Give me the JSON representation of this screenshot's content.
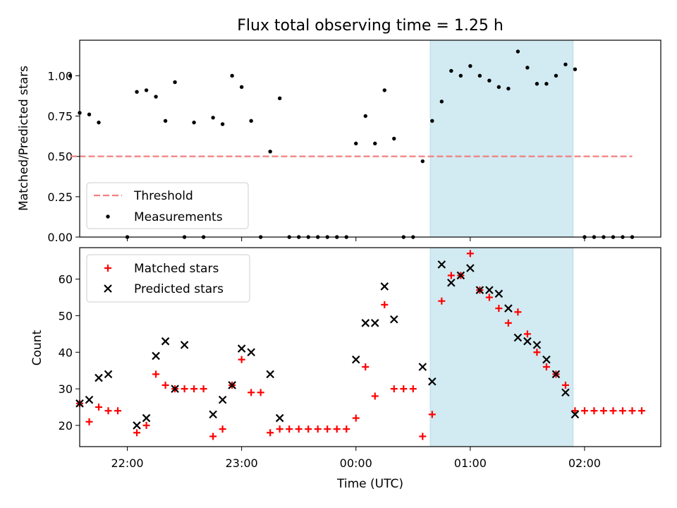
{
  "title": "Flux total observing time = 1.25 h",
  "chart_data": [
    {
      "type": "scatter",
      "panel": "top",
      "ylabel": "Matched/Predicted stars",
      "xlim": [
        "21:35",
        "02:40"
      ],
      "ylim": [
        0,
        1.22
      ],
      "yticks": [
        0.0,
        0.25,
        0.5,
        0.75,
        1.0
      ],
      "ytick_labels": [
        "0.00",
        "0.25",
        "0.50",
        "0.75",
        "1.00"
      ],
      "threshold": {
        "name": "Threshold",
        "value": 0.5,
        "x_range": [
          "21:30",
          "02:25"
        ],
        "color": "#f08080",
        "style": "dashed"
      },
      "highlight": {
        "from": "00:39",
        "to": "01:54",
        "color": "#add8e6"
      },
      "legend": {
        "position": "lower-left"
      },
      "series": [
        {
          "name": "Measurements",
          "color": "#000000",
          "points": [
            [
              "21:30",
              1.0
            ],
            [
              "21:35",
              0.77
            ],
            [
              "21:40",
              0.76
            ],
            [
              "21:45",
              0.71
            ],
            [
              "22:00",
              0.0
            ],
            [
              "22:05",
              0.9
            ],
            [
              "22:10",
              0.91
            ],
            [
              "22:15",
              0.87
            ],
            [
              "22:20",
              0.72
            ],
            [
              "22:25",
              0.96
            ],
            [
              "22:30",
              0.0
            ],
            [
              "22:35",
              0.71
            ],
            [
              "22:40",
              0.0
            ],
            [
              "22:45",
              0.74
            ],
            [
              "22:50",
              0.7
            ],
            [
              "22:55",
              1.0
            ],
            [
              "23:00",
              0.93
            ],
            [
              "23:05",
              0.72
            ],
            [
              "23:10",
              0.0
            ],
            [
              "23:15",
              0.53
            ],
            [
              "23:20",
              0.86
            ],
            [
              "23:25",
              0.0
            ],
            [
              "23:30",
              0.0
            ],
            [
              "23:35",
              0.0
            ],
            [
              "23:40",
              0.0
            ],
            [
              "23:45",
              0.0
            ],
            [
              "23:50",
              0.0
            ],
            [
              "23:55",
              0.0
            ],
            [
              "00:00",
              0.58
            ],
            [
              "00:05",
              0.75
            ],
            [
              "00:10",
              0.58
            ],
            [
              "00:15",
              0.91
            ],
            [
              "00:20",
              0.61
            ],
            [
              "00:25",
              0.0
            ],
            [
              "00:30",
              0.0
            ],
            [
              "00:35",
              0.47
            ],
            [
              "00:40",
              0.72
            ],
            [
              "00:45",
              0.84
            ],
            [
              "00:50",
              1.03
            ],
            [
              "00:55",
              1.0
            ],
            [
              "01:00",
              1.06
            ],
            [
              "01:05",
              1.0
            ],
            [
              "01:10",
              0.97
            ],
            [
              "01:15",
              0.93
            ],
            [
              "01:20",
              0.92
            ],
            [
              "01:25",
              1.15
            ],
            [
              "01:30",
              1.05
            ],
            [
              "01:35",
              0.95
            ],
            [
              "01:40",
              0.95
            ],
            [
              "01:45",
              1.0
            ],
            [
              "01:50",
              1.07
            ],
            [
              "01:55",
              1.04
            ],
            [
              "02:00",
              0.0
            ],
            [
              "02:05",
              0.0
            ],
            [
              "02:10",
              0.0
            ],
            [
              "02:15",
              0.0
            ],
            [
              "02:20",
              0.0
            ],
            [
              "02:25",
              0.0
            ]
          ]
        }
      ]
    },
    {
      "type": "scatter",
      "panel": "bottom",
      "xlabel": "Time (UTC)",
      "ylabel": "Count",
      "xlim": [
        "21:35",
        "02:40"
      ],
      "xticks": [
        "22:00",
        "23:00",
        "00:00",
        "01:00",
        "02:00"
      ],
      "ylim": [
        14.2,
        68.6
      ],
      "yticks": [
        20,
        30,
        40,
        50,
        60
      ],
      "highlight": {
        "from": "00:39",
        "to": "01:54",
        "color": "#add8e6"
      },
      "legend": {
        "position": "upper-left"
      },
      "series": [
        {
          "name": "Matched stars",
          "marker": "plus",
          "color": "#ff0000",
          "points": [
            [
              "21:35",
              26
            ],
            [
              "21:40",
              21
            ],
            [
              "21:45",
              25
            ],
            [
              "21:50",
              24
            ],
            [
              "21:55",
              24
            ],
            [
              "22:05",
              18
            ],
            [
              "22:10",
              20
            ],
            [
              "22:15",
              34
            ],
            [
              "22:20",
              31
            ],
            [
              "22:25",
              30
            ],
            [
              "22:30",
              30
            ],
            [
              "22:35",
              30
            ],
            [
              "22:40",
              30
            ],
            [
              "22:45",
              17
            ],
            [
              "22:50",
              19
            ],
            [
              "22:55",
              31
            ],
            [
              "23:00",
              38
            ],
            [
              "23:05",
              29
            ],
            [
              "23:10",
              29
            ],
            [
              "23:15",
              18
            ],
            [
              "23:20",
              19
            ],
            [
              "23:25",
              19
            ],
            [
              "23:30",
              19
            ],
            [
              "23:35",
              19
            ],
            [
              "23:40",
              19
            ],
            [
              "23:45",
              19
            ],
            [
              "23:50",
              19
            ],
            [
              "23:55",
              19
            ],
            [
              "00:00",
              22
            ],
            [
              "00:05",
              36
            ],
            [
              "00:10",
              28
            ],
            [
              "00:15",
              53
            ],
            [
              "00:20",
              30
            ],
            [
              "00:25",
              30
            ],
            [
              "00:30",
              30
            ],
            [
              "00:35",
              17
            ],
            [
              "00:40",
              23
            ],
            [
              "00:45",
              54
            ],
            [
              "00:50",
              61
            ],
            [
              "00:55",
              61
            ],
            [
              "01:00",
              67
            ],
            [
              "01:05",
              57
            ],
            [
              "01:10",
              55
            ],
            [
              "01:15",
              52
            ],
            [
              "01:20",
              48
            ],
            [
              "01:25",
              51
            ],
            [
              "01:30",
              45
            ],
            [
              "01:35",
              40
            ],
            [
              "01:40",
              36
            ],
            [
              "01:45",
              34
            ],
            [
              "01:50",
              31
            ],
            [
              "01:55",
              24
            ],
            [
              "02:00",
              24
            ],
            [
              "02:05",
              24
            ],
            [
              "02:10",
              24
            ],
            [
              "02:15",
              24
            ],
            [
              "02:20",
              24
            ],
            [
              "02:25",
              24
            ],
            [
              "02:30",
              24
            ]
          ]
        },
        {
          "name": "Predicted stars",
          "marker": "x",
          "color": "#000000",
          "points": [
            [
              "21:35",
              26
            ],
            [
              "21:40",
              27
            ],
            [
              "21:45",
              33
            ],
            [
              "21:50",
              34
            ],
            [
              "22:05",
              20
            ],
            [
              "22:10",
              22
            ],
            [
              "22:15",
              39
            ],
            [
              "22:20",
              43
            ],
            [
              "22:25",
              30
            ],
            [
              "22:30",
              42
            ],
            [
              "22:45",
              23
            ],
            [
              "22:50",
              27
            ],
            [
              "22:55",
              31
            ],
            [
              "23:00",
              41
            ],
            [
              "23:05",
              40
            ],
            [
              "23:15",
              34
            ],
            [
              "23:20",
              22
            ],
            [
              "00:00",
              38
            ],
            [
              "00:05",
              48
            ],
            [
              "00:10",
              48
            ],
            [
              "00:15",
              58
            ],
            [
              "00:20",
              49
            ],
            [
              "00:35",
              36
            ],
            [
              "00:40",
              32
            ],
            [
              "00:45",
              64
            ],
            [
              "00:50",
              59
            ],
            [
              "00:55",
              61
            ],
            [
              "01:00",
              63
            ],
            [
              "01:05",
              57
            ],
            [
              "01:10",
              57
            ],
            [
              "01:15",
              56
            ],
            [
              "01:20",
              52
            ],
            [
              "01:25",
              44
            ],
            [
              "01:30",
              43
            ],
            [
              "01:35",
              42
            ],
            [
              "01:40",
              38
            ],
            [
              "01:45",
              34
            ],
            [
              "01:50",
              29
            ],
            [
              "01:55",
              23
            ]
          ]
        }
      ]
    }
  ]
}
